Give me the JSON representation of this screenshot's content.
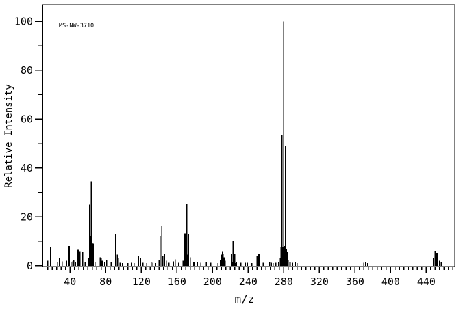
{
  "colors": {
    "foreground": "#000000",
    "background": "#ffffff"
  },
  "chart_data": {
    "type": "bar",
    "subtype": "mass-spectrum-stick-plot",
    "annotation": "MS-NW-3710",
    "xlabel": "m/z",
    "ylabel": "Relative Intensity",
    "xlim": [
      9,
      472
    ],
    "ylim": [
      0,
      107
    ],
    "x_major_ticks": [
      40,
      80,
      120,
      160,
      200,
      240,
      280,
      320,
      360,
      400,
      440
    ],
    "x_minor_step": 5,
    "y_major_ticks": [
      0,
      20,
      40,
      60,
      80,
      100
    ],
    "y_minor_step": 10,
    "grid": false,
    "legend": "none",
    "peaks": [
      [
        15,
        2
      ],
      [
        18,
        7.5
      ],
      [
        26,
        1.5
      ],
      [
        28,
        3
      ],
      [
        31,
        1.8
      ],
      [
        36,
        2
      ],
      [
        38,
        7.2
      ],
      [
        39,
        8
      ],
      [
        41,
        1.5
      ],
      [
        43,
        1.8
      ],
      [
        44,
        2.2
      ],
      [
        46,
        1.3
      ],
      [
        49,
        6.5
      ],
      [
        51,
        6
      ],
      [
        54,
        5.5
      ],
      [
        57,
        1.4
      ],
      [
        61,
        3
      ],
      [
        62,
        25
      ],
      [
        63,
        12
      ],
      [
        64,
        34.5
      ],
      [
        65,
        9.5
      ],
      [
        66,
        9
      ],
      [
        68,
        1.5
      ],
      [
        74,
        3.5
      ],
      [
        75,
        3
      ],
      [
        76,
        2
      ],
      [
        79,
        1.5
      ],
      [
        81,
        2.2
      ],
      [
        86,
        1.5
      ],
      [
        91,
        13
      ],
      [
        93,
        4.5
      ],
      [
        94,
        3.3
      ],
      [
        96,
        1.2
      ],
      [
        99,
        1
      ],
      [
        105,
        1
      ],
      [
        109,
        1.2
      ],
      [
        112,
        1
      ],
      [
        117,
        4
      ],
      [
        119,
        3
      ],
      [
        122,
        1.2
      ],
      [
        126,
        1
      ],
      [
        131,
        1.5
      ],
      [
        133,
        1.2
      ],
      [
        136,
        1
      ],
      [
        140,
        2.5
      ],
      [
        141,
        12
      ],
      [
        143,
        16.5
      ],
      [
        144,
        4
      ],
      [
        146,
        5
      ],
      [
        148,
        2
      ],
      [
        151,
        1.2
      ],
      [
        156,
        1.7
      ],
      [
        158,
        2.6
      ],
      [
        162,
        1.2
      ],
      [
        167,
        2
      ],
      [
        169,
        13.3
      ],
      [
        170,
        4
      ],
      [
        171,
        25.2
      ],
      [
        172,
        4.5
      ],
      [
        173,
        13
      ],
      [
        175,
        3.5
      ],
      [
        179,
        1.5
      ],
      [
        183,
        1.3
      ],
      [
        187,
        1.2
      ],
      [
        193,
        1.3
      ],
      [
        198,
        1.2
      ],
      [
        206,
        1
      ],
      [
        209,
        2.5
      ],
      [
        210,
        4.5
      ],
      [
        211,
        6
      ],
      [
        212,
        4.8
      ],
      [
        213,
        3.5
      ],
      [
        214,
        2
      ],
      [
        221,
        4.7
      ],
      [
        222,
        1.5
      ],
      [
        223,
        10
      ],
      [
        224,
        1.5
      ],
      [
        225,
        4.7
      ],
      [
        226,
        1
      ],
      [
        227,
        1.5
      ],
      [
        232,
        1.2
      ],
      [
        237,
        1.2
      ],
      [
        239,
        1.2
      ],
      [
        244,
        1
      ],
      [
        250,
        3.9
      ],
      [
        252,
        5
      ],
      [
        253,
        2.9
      ],
      [
        257,
        1.2
      ],
      [
        264,
        1.5
      ],
      [
        266,
        1.2
      ],
      [
        268,
        1
      ],
      [
        271,
        1.2
      ],
      [
        274,
        1.5
      ],
      [
        276,
        3.1
      ],
      [
        277,
        7.5
      ],
      [
        278,
        53.5
      ],
      [
        279,
        7.8
      ],
      [
        280,
        100
      ],
      [
        281,
        8
      ],
      [
        282,
        49
      ],
      [
        283,
        7
      ],
      [
        284,
        5.7
      ],
      [
        285,
        2.5
      ],
      [
        287,
        1.5
      ],
      [
        290,
        1.2
      ],
      [
        293,
        1.3
      ],
      [
        295,
        1.1
      ],
      [
        370,
        1.2
      ],
      [
        372,
        1.4
      ],
      [
        374,
        1.1
      ],
      [
        448,
        3.3
      ],
      [
        450,
        6.1
      ],
      [
        452,
        5.2
      ],
      [
        453,
        2.5
      ],
      [
        455,
        2
      ],
      [
        457,
        1.3
      ]
    ]
  }
}
